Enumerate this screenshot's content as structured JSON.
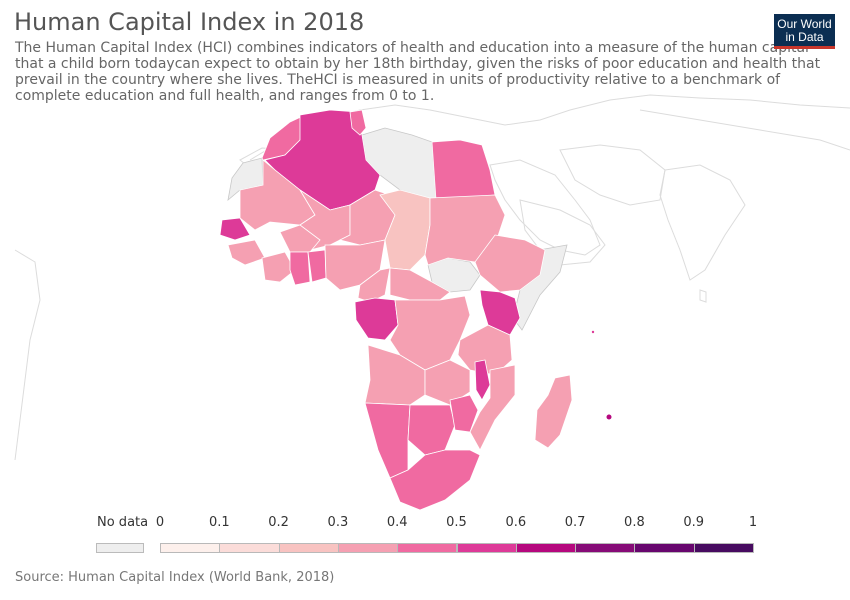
{
  "header": {
    "title": "Human Capital Index in 2018",
    "subtitle": "The Human Capital Index (HCI) combines indicators of health and education into a measure of the human capital that a child born todaycan expect to obtain by her 18th birthday, given the risks of poor education and health that prevail in the country where she lives. TheHCI is measured in units of productivity relative to a benchmark of complete education and full health, and ranges from 0 to 1."
  },
  "logo": {
    "line1": "Our World",
    "line2": "in Data"
  },
  "legend": {
    "nodata_label": "No data",
    "ticks": [
      "0",
      "0.1",
      "0.2",
      "0.3",
      "0.4",
      "0.5",
      "0.6",
      "0.7",
      "0.8",
      "0.9",
      "1"
    ],
    "colors": [
      "#fdf0ec",
      "#fbdcd9",
      "#f8c3c1",
      "#f5a0b2",
      "#f06aa1",
      "#dd3a98",
      "#b5087e",
      "#860b77",
      "#67066e",
      "#470b60"
    ],
    "nodata_color": "#eeeeee"
  },
  "source": "Source: Human Capital Index (World Bank, 2018)"
}
